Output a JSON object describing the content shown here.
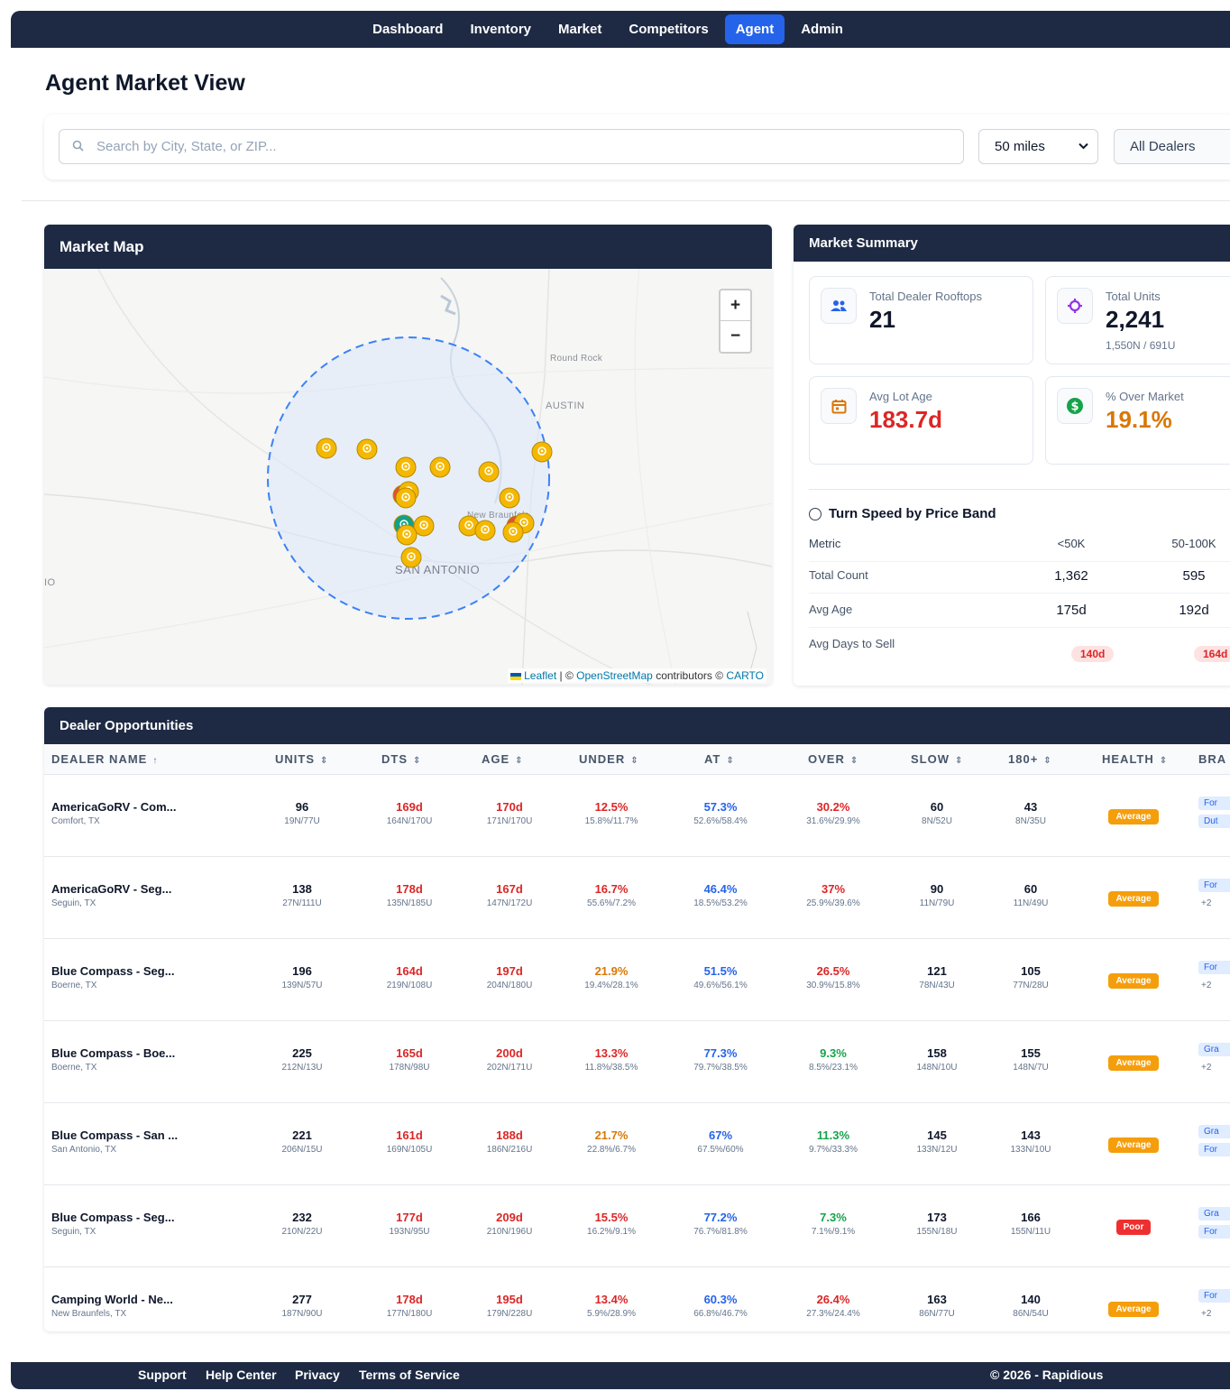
{
  "nav": {
    "items": [
      "Dashboard",
      "Inventory",
      "Market",
      "Competitors",
      "Agent",
      "Admin"
    ],
    "active_index": 4,
    "active_color": "#2563eb",
    "bar_color": "#1e2a44"
  },
  "page": {
    "title": "Agent Market View"
  },
  "search": {
    "placeholder": "Search by City, State, or ZIP...",
    "value": "",
    "radius": "50 miles",
    "dealer_filter": "All Dealers"
  },
  "map": {
    "title": "Market Map",
    "labels": {
      "round_rock": "Round Rock",
      "austin": "AUSTIN",
      "new_braunfels": "New Braunfels",
      "san_antonio": "SAN ANTONIO",
      "edge": "IO"
    },
    "zoom_in": "+",
    "zoom_out": "−",
    "attribution": {
      "leaflet": "Leaflet",
      "sep": "| ©",
      "osm": "OpenStreetMap",
      "contrib": "contributors ©",
      "carto": "CARTO"
    },
    "marker_colors": {
      "yellow": "#f5b800",
      "red": "#e74c3c",
      "teal": "#14a085"
    }
  },
  "summary": {
    "title": "Market Summary",
    "stats": [
      {
        "label": "Total Dealer Rooftops",
        "value": "21",
        "sub": "",
        "icon": "users-icon",
        "color": "#0f172a"
      },
      {
        "label": "Total Units",
        "value": "2,241",
        "sub": "1,550N / 691U",
        "icon": "gear-icon",
        "color": "#0f172a"
      },
      {
        "label": "Avg Lot Age",
        "value": "183.7d",
        "sub": "",
        "icon": "calendar-icon",
        "color": "#dc2626"
      },
      {
        "label": "% Over Market",
        "value": "19.1%",
        "sub": "",
        "icon": "dollar-icon",
        "color": "#d97706"
      }
    ],
    "turn_speed": {
      "title": "Turn Speed by Price Band",
      "headers": [
        "Metric",
        "<50K",
        "50-100K"
      ],
      "rows": [
        {
          "metric": "Total Count",
          "a": "1,362",
          "b": "595"
        },
        {
          "metric": "Avg Age",
          "a": "175d",
          "b": "192d"
        },
        {
          "metric": "Avg Days to Sell",
          "a": "140d",
          "b": "164d"
        }
      ]
    }
  },
  "dealers": {
    "title": "Dealer Opportunities",
    "columns": [
      "DEALER NAME",
      "UNITS",
      "DTS",
      "AGE",
      "UNDER",
      "AT",
      "OVER",
      "SLOW",
      "180+",
      "HEALTH",
      "BRA"
    ],
    "rows": [
      {
        "name": "AmericaGoRV - Com...",
        "city": "Comfort, TX",
        "units": "96",
        "units_sub": "19N/77U",
        "dts": "169d",
        "dts_sub": "164N/170U",
        "age": "170d",
        "age_sub": "171N/170U",
        "under": "12.5%",
        "under_sub": "15.8%/11.7%",
        "at": "57.3%",
        "at_sub": "52.6%/58.4%",
        "over": "30.2%",
        "over_sub": "31.6%/29.9%",
        "over_color": "#dc2626",
        "under_color": "#dc2626",
        "slow": "60",
        "slow_sub": "8N/52U",
        "s180": "43",
        "s180_sub": "8N/35U",
        "health": "Average",
        "health_color": "#f59e0b",
        "tags": [
          "For",
          "Dut"
        ]
      },
      {
        "name": "AmericaGoRV - Seg...",
        "city": "Seguin, TX",
        "units": "138",
        "units_sub": "27N/111U",
        "dts": "178d",
        "dts_sub": "135N/185U",
        "age": "167d",
        "age_sub": "147N/172U",
        "under": "16.7%",
        "under_sub": "55.6%/7.2%",
        "at": "46.4%",
        "at_sub": "18.5%/53.2%",
        "over": "37%",
        "over_sub": "25.9%/39.6%",
        "over_color": "#dc2626",
        "under_color": "#dc2626",
        "slow": "90",
        "slow_sub": "11N/79U",
        "s180": "60",
        "s180_sub": "11N/49U",
        "health": "Average",
        "health_color": "#f59e0b",
        "tags": [
          "For",
          "+2"
        ]
      },
      {
        "name": "Blue Compass - Seg...",
        "city": "Boerne, TX",
        "units": "196",
        "units_sub": "139N/57U",
        "dts": "164d",
        "dts_sub": "219N/108U",
        "age": "197d",
        "age_sub": "204N/180U",
        "under": "21.9%",
        "under_sub": "19.4%/28.1%",
        "at": "51.5%",
        "at_sub": "49.6%/56.1%",
        "over": "26.5%",
        "over_sub": "30.9%/15.8%",
        "over_color": "#dc2626",
        "under_color": "#d97706",
        "slow": "121",
        "slow_sub": "78N/43U",
        "s180": "105",
        "s180_sub": "77N/28U",
        "health": "Average",
        "health_color": "#f59e0b",
        "tags": [
          "For",
          "+2"
        ]
      },
      {
        "name": "Blue Compass - Boe...",
        "city": "Boerne, TX",
        "units": "225",
        "units_sub": "212N/13U",
        "dts": "165d",
        "dts_sub": "178N/98U",
        "age": "200d",
        "age_sub": "202N/171U",
        "under": "13.3%",
        "under_sub": "11.8%/38.5%",
        "at": "77.3%",
        "at_sub": "79.7%/38.5%",
        "over": "9.3%",
        "over_sub": "8.5%/23.1%",
        "over_color": "#16a34a",
        "under_color": "#dc2626",
        "slow": "158",
        "slow_sub": "148N/10U",
        "s180": "155",
        "s180_sub": "148N/7U",
        "health": "Average",
        "health_color": "#f59e0b",
        "tags": [
          "Gra",
          "+2"
        ]
      },
      {
        "name": "Blue Compass - San ...",
        "city": "San Antonio, TX",
        "units": "221",
        "units_sub": "206N/15U",
        "dts": "161d",
        "dts_sub": "169N/105U",
        "age": "188d",
        "age_sub": "186N/216U",
        "under": "21.7%",
        "under_sub": "22.8%/6.7%",
        "at": "67%",
        "at_sub": "67.5%/60%",
        "over": "11.3%",
        "over_sub": "9.7%/33.3%",
        "over_color": "#16a34a",
        "under_color": "#d97706",
        "slow": "145",
        "slow_sub": "133N/12U",
        "s180": "143",
        "s180_sub": "133N/10U",
        "health": "Average",
        "health_color": "#f59e0b",
        "tags": [
          "Gra",
          "For"
        ]
      },
      {
        "name": "Blue Compass - Seg...",
        "city": "Seguin, TX",
        "units": "232",
        "units_sub": "210N/22U",
        "dts": "177d",
        "dts_sub": "193N/95U",
        "age": "209d",
        "age_sub": "210N/196U",
        "under": "15.5%",
        "under_sub": "16.2%/9.1%",
        "at": "77.2%",
        "at_sub": "76.7%/81.8%",
        "over": "7.3%",
        "over_sub": "7.1%/9.1%",
        "over_color": "#16a34a",
        "under_color": "#dc2626",
        "slow": "173",
        "slow_sub": "155N/18U",
        "s180": "166",
        "s180_sub": "155N/11U",
        "health": "Poor",
        "health_color": "#ef2f2f",
        "tags": [
          "Gra",
          "For"
        ]
      },
      {
        "name": "Camping World - Ne...",
        "city": "New Braunfels, TX",
        "units": "277",
        "units_sub": "187N/90U",
        "dts": "178d",
        "dts_sub": "177N/180U",
        "age": "195d",
        "age_sub": "179N/228U",
        "under": "13.4%",
        "under_sub": "5.9%/28.9%",
        "at": "60.3%",
        "at_sub": "66.8%/46.7%",
        "over": "26.4%",
        "over_sub": "27.3%/24.4%",
        "over_color": "#dc2626",
        "under_color": "#dc2626",
        "slow": "163",
        "slow_sub": "86N/77U",
        "s180": "140",
        "s180_sub": "86N/54U",
        "health": "Average",
        "health_color": "#f59e0b",
        "tags": [
          "For",
          "+2"
        ]
      }
    ]
  },
  "footer": {
    "links": [
      "Support",
      "Help Center",
      "Privacy",
      "Terms of Service"
    ],
    "copyright": "© 2026 - Rapidious"
  }
}
